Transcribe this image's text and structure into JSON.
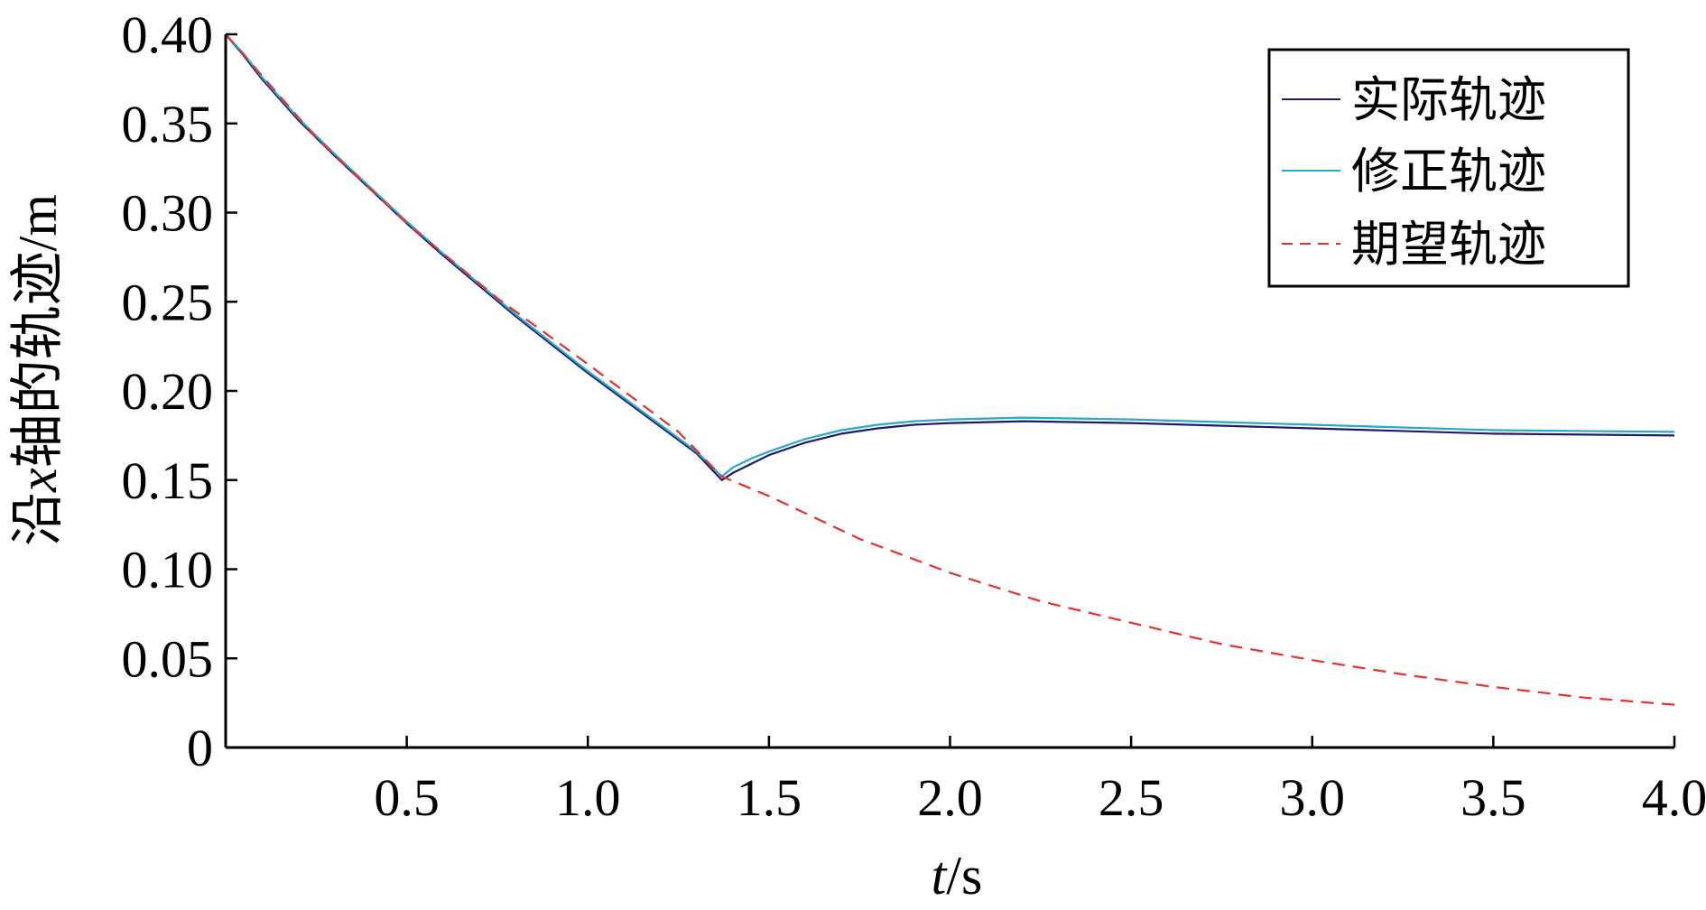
{
  "chart_data": {
    "type": "line",
    "xlabel_italic": "t",
    "xlabel_rest": "/s",
    "ylabel_prefix": "沿",
    "ylabel_italic": "x",
    "ylabel_rest": "轴的轨迹/m",
    "xlim": [
      0,
      4.0
    ],
    "ylim": [
      0,
      0.4
    ],
    "xticks": [
      0.5,
      1.0,
      1.5,
      2.0,
      2.5,
      3.0,
      3.5,
      4.0
    ],
    "xtick_labels": [
      "0.5",
      "1.0",
      "1.5",
      "2.0",
      "2.5",
      "3.0",
      "3.5",
      "4.0"
    ],
    "yticks": [
      0,
      0.05,
      0.1,
      0.15,
      0.2,
      0.25,
      0.3,
      0.35,
      0.4
    ],
    "ytick_labels": [
      "0",
      "0.05",
      "0.10",
      "0.15",
      "0.20",
      "0.25",
      "0.30",
      "0.35",
      "0.40"
    ],
    "grid": false,
    "legend_position": "top-right",
    "series": [
      {
        "name": "实际轨迹",
        "color": "#1c1c6b",
        "dash": "solid",
        "x": [
          0,
          0.05,
          0.1,
          0.2,
          0.3,
          0.4,
          0.5,
          0.6,
          0.7,
          0.8,
          0.9,
          1.0,
          1.1,
          1.2,
          1.3,
          1.37,
          1.4,
          1.45,
          1.5,
          1.6,
          1.7,
          1.8,
          1.9,
          2.0,
          2.2,
          2.5,
          3.0,
          3.5,
          4.0
        ],
        "y": [
          0.4,
          0.388,
          0.375,
          0.352,
          0.332,
          0.313,
          0.294,
          0.276,
          0.259,
          0.242,
          0.226,
          0.21,
          0.195,
          0.18,
          0.165,
          0.15,
          0.154,
          0.159,
          0.164,
          0.171,
          0.176,
          0.179,
          0.181,
          0.182,
          0.183,
          0.182,
          0.179,
          0.176,
          0.175
        ]
      },
      {
        "name": "修正轨迹",
        "color": "#2aa8c8",
        "dash": "solid",
        "x": [
          0,
          0.05,
          0.1,
          0.2,
          0.3,
          0.4,
          0.5,
          0.6,
          0.7,
          0.8,
          0.9,
          1.0,
          1.1,
          1.2,
          1.3,
          1.37,
          1.4,
          1.45,
          1.5,
          1.6,
          1.7,
          1.8,
          1.9,
          2.0,
          2.2,
          2.5,
          3.0,
          3.5,
          4.0
        ],
        "y": [
          0.4,
          0.389,
          0.376,
          0.353,
          0.333,
          0.314,
          0.295,
          0.277,
          0.26,
          0.243,
          0.227,
          0.211,
          0.196,
          0.181,
          0.166,
          0.152,
          0.157,
          0.162,
          0.166,
          0.173,
          0.178,
          0.181,
          0.183,
          0.184,
          0.185,
          0.184,
          0.181,
          0.178,
          0.177
        ]
      },
      {
        "name": "期望轨迹",
        "color": "#e53030",
        "dash": "dashed",
        "x": [
          0,
          0.25,
          0.5,
          0.75,
          1.0,
          1.25,
          1.37,
          1.5,
          1.75,
          2.0,
          2.25,
          2.5,
          2.75,
          3.0,
          3.25,
          3.5,
          3.75,
          4.0
        ],
        "y": [
          0.4,
          0.342,
          0.294,
          0.252,
          0.215,
          0.177,
          0.152,
          0.141,
          0.117,
          0.098,
          0.082,
          0.07,
          0.058,
          0.049,
          0.041,
          0.034,
          0.028,
          0.024
        ]
      }
    ]
  }
}
